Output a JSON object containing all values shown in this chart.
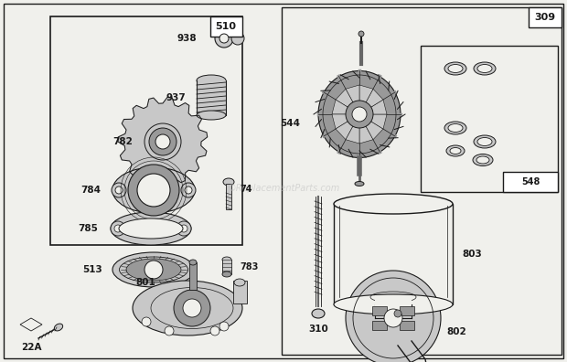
{
  "bg_color": "#f0f0ec",
  "line_color": "#1a1a1a",
  "gray_light": "#c8c8c8",
  "gray_mid": "#999999",
  "gray_dark": "#666666",
  "white": "#ffffff",
  "watermark": "©ReplacementParts.com",
  "fig_w": 6.2,
  "fig_h": 3.96,
  "dpi": 100
}
